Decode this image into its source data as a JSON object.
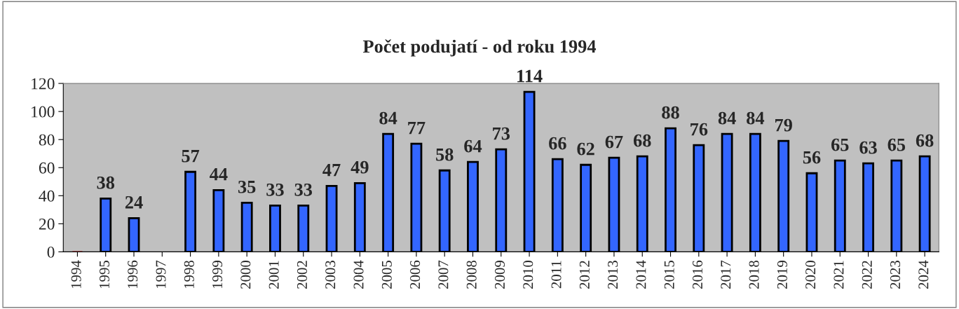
{
  "chart_data": {
    "type": "bar",
    "title": "Počet podujatí - od roku 1994",
    "categories": [
      "1994",
      "1995",
      "1996",
      "1997",
      "1998",
      "1999",
      "2000",
      "2001",
      "2002",
      "2003",
      "2004",
      "2005",
      "2006",
      "2007",
      "2008",
      "2009",
      "2010",
      "2011",
      "2012",
      "2013",
      "2014",
      "2015",
      "2016",
      "2017",
      "2018",
      "2019",
      "2020",
      "2021",
      "2022",
      "2023",
      "2024"
    ],
    "values": [
      0,
      38,
      24,
      null,
      57,
      44,
      35,
      33,
      33,
      47,
      49,
      84,
      77,
      58,
      64,
      73,
      114,
      66,
      62,
      67,
      68,
      88,
      76,
      84,
      84,
      79,
      56,
      65,
      63,
      65,
      68
    ],
    "colors": [
      "#d04040",
      "#3366ff",
      "#3366ff",
      "#3366ff",
      "#3366ff",
      "#3366ff",
      "#3366ff",
      "#3366ff",
      "#3366ff",
      "#3366ff",
      "#3366ff",
      "#3366ff",
      "#3366ff",
      "#3366ff",
      "#3366ff",
      "#3366ff",
      "#3366ff",
      "#3366ff",
      "#3366ff",
      "#3366ff",
      "#3366ff",
      "#3366ff",
      "#3366ff",
      "#3366ff",
      "#3366ff",
      "#3366ff",
      "#3366ff",
      "#3366ff",
      "#3366ff",
      "#3366ff",
      "#3366ff"
    ],
    "value_labels": [
      null,
      "38",
      "24",
      null,
      "57",
      "44",
      "35",
      "33",
      "33",
      "47",
      "49",
      "84",
      "77",
      "58",
      "64",
      "73",
      "114",
      "66",
      "62",
      "67",
      "68",
      "88",
      "76",
      "84",
      "84",
      "79",
      "56",
      "65",
      "63",
      "65",
      "68"
    ],
    "ylim": [
      0,
      120
    ],
    "yticks": [
      0,
      20,
      40,
      60,
      80,
      100,
      120
    ],
    "grid": false,
    "legend": false
  }
}
